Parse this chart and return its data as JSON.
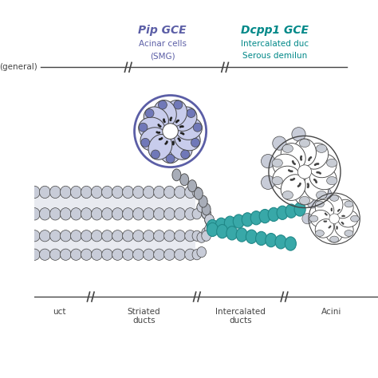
{
  "background_color": "#ffffff",
  "title_pip": "Pip GCE",
  "title_dcpp1": "Dcpp1 GCE",
  "subtitle_pip_1": "Acinar cells",
  "subtitle_pip_2": "(SMG)",
  "subtitle_dcpp1_1": "Intercalated duc",
  "subtitle_dcpp1_2": "Serous demilun",
  "label_general": "(general)",
  "label_excretory": "uct",
  "label_striated": "Striated\nducts",
  "label_intercalated": "Intercalated\nducts",
  "label_acini": "Acini",
  "pip_color": "#5b5ea6",
  "dcpp1_color": "#008888",
  "acinar_fill_light": "#c8ccec",
  "acinar_fill_dark": "#9098c8",
  "acinar_nucleus": "#7078b8",
  "teal_duct_fill": "#38a8a8",
  "teal_duct_edge": "#208888",
  "gray_cell_fill": "#a8adb8",
  "gray_cell_light": "#c8ccd8",
  "duct_interior": "#e8eaf0",
  "serous_fill": "#ffffff",
  "serous_nucleus": "#c8ccd4",
  "line_color": "#444444",
  "fig_width": 4.74,
  "fig_height": 4.74,
  "dpi": 100
}
